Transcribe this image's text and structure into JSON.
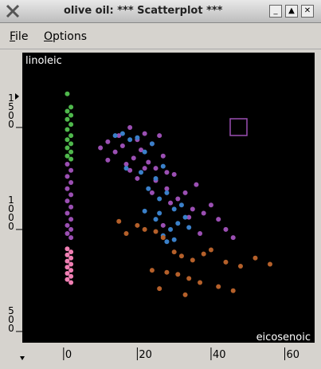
{
  "window": {
    "title": "olive oil: *** Scatterplot ***",
    "menu": [
      "File",
      "Options"
    ]
  },
  "chart_data": {
    "type": "scatter",
    "x_label": "eicosenoic",
    "y_label": "linoleic",
    "xlim": [
      -11.2,
      68.1
    ],
    "xticks": [
      0,
      20,
      40,
      60
    ],
    "ylim": [
      445,
      1867
    ],
    "yticks": [
      500,
      1000,
      1500
    ],
    "series": [
      {
        "color": "#4fb84c",
        "x": [
          1,
          2,
          1,
          2,
          1,
          2,
          1,
          2,
          1,
          2,
          1,
          2,
          1,
          2
        ],
        "y": [
          1665,
          1600,
          1580,
          1560,
          1540,
          1515,
          1490,
          1460,
          1440,
          1420,
          1400,
          1380,
          1360,
          1345
        ]
      },
      {
        "color": "#9b4fb3",
        "x": [
          1,
          2,
          1,
          2,
          1,
          2,
          1,
          2,
          1,
          2,
          1,
          2,
          1,
          2
        ],
        "y": [
          1320,
          1290,
          1260,
          1230,
          1200,
          1170,
          1140,
          1110,
          1080,
          1050,
          1020,
          1000,
          980,
          960
        ]
      },
      {
        "color": "#f07fb3",
        "x": [
          1,
          2,
          1,
          2,
          1,
          2,
          1,
          2,
          1,
          2,
          1,
          2
        ],
        "y": [
          905,
          890,
          875,
          860,
          845,
          830,
          815,
          800,
          785,
          770,
          755,
          740
        ]
      },
      {
        "color": "#9b4fb3",
        "x": [
          10,
          12,
          14,
          15,
          16,
          18,
          19,
          20,
          21,
          22,
          23,
          24,
          25,
          26,
          27,
          28,
          12,
          17,
          20,
          22,
          25,
          28,
          30,
          31,
          33,
          35,
          36,
          38,
          40,
          42,
          44,
          46,
          24,
          29,
          34,
          18,
          27,
          37
        ],
        "y": [
          1400,
          1430,
          1380,
          1460,
          1410,
          1500,
          1350,
          1440,
          1390,
          1470,
          1330,
          1420,
          1300,
          1460,
          1360,
          1280,
          1340,
          1320,
          1250,
          1300,
          1240,
          1200,
          1270,
          1150,
          1180,
          1100,
          1220,
          1080,
          1120,
          1050,
          1000,
          960,
          1180,
          1130,
          1060,
          1290,
          1020,
          980
        ]
      },
      {
        "color": "#3a80c9",
        "x": [
          14,
          16,
          18,
          20,
          22,
          24,
          17,
          21,
          25,
          27,
          23,
          26,
          28,
          30,
          32,
          22,
          25,
          29,
          31,
          33,
          27,
          30,
          34,
          26,
          28
        ],
        "y": [
          1460,
          1470,
          1440,
          1450,
          1380,
          1420,
          1300,
          1280,
          1250,
          1310,
          1200,
          1150,
          1180,
          1100,
          1120,
          1090,
          1050,
          1000,
          1030,
          1060,
          970,
          950,
          1010,
          1080,
          940
        ]
      },
      {
        "color": "#b5602a",
        "x": [
          15,
          17,
          20,
          22,
          25,
          27,
          30,
          32,
          35,
          38,
          40,
          44,
          48,
          52,
          56,
          24,
          28,
          31,
          34,
          37,
          42,
          46,
          26,
          33
        ],
        "y": [
          1040,
          980,
          1020,
          1000,
          990,
          960,
          890,
          870,
          850,
          880,
          900,
          840,
          820,
          860,
          830,
          800,
          790,
          780,
          760,
          740,
          720,
          700,
          710,
          680
        ]
      }
    ]
  }
}
